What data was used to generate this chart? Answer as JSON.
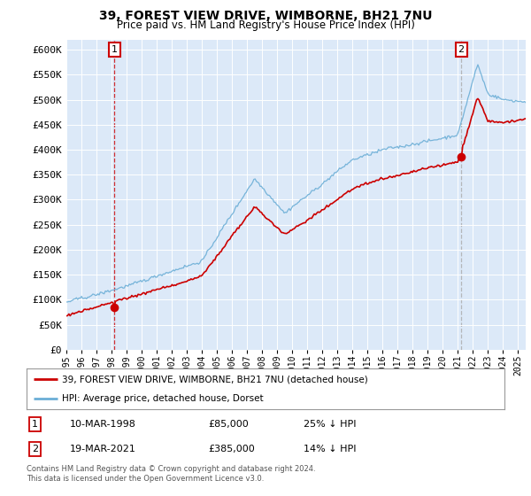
{
  "title": "39, FOREST VIEW DRIVE, WIMBORNE, BH21 7NU",
  "subtitle": "Price paid vs. HM Land Registry's House Price Index (HPI)",
  "ylabel_ticks": [
    "£0",
    "£50K",
    "£100K",
    "£150K",
    "£200K",
    "£250K",
    "£300K",
    "£350K",
    "£400K",
    "£450K",
    "£500K",
    "£550K",
    "£600K"
  ],
  "ytick_values": [
    0,
    50000,
    100000,
    150000,
    200000,
    250000,
    300000,
    350000,
    400000,
    450000,
    500000,
    550000,
    600000
  ],
  "ylim": [
    0,
    620000
  ],
  "xlim_start": 1995.0,
  "xlim_end": 2025.5,
  "transaction1": {
    "date_num": 1998.19,
    "price": 85000,
    "label": "1",
    "pct": "25% ↓ HPI",
    "date_str": "10-MAR-1998"
  },
  "transaction2": {
    "date_num": 2021.22,
    "price": 385000,
    "label": "2",
    "pct": "14% ↓ HPI",
    "date_str": "19-MAR-2021"
  },
  "legend_line1": "39, FOREST VIEW DRIVE, WIMBORNE, BH21 7NU (detached house)",
  "legend_line2": "HPI: Average price, detached house, Dorset",
  "footnote": "Contains HM Land Registry data © Crown copyright and database right 2024.\nThis data is licensed under the Open Government Licence v3.0.",
  "bg_color": "#dce9f8",
  "hpi_color": "#6baed6",
  "price_color": "#cc0000",
  "box_color": "#cc0000",
  "grid_color": "#ffffff",
  "vline1_color": "#cc0000",
  "vline2_color": "#aaaaaa"
}
